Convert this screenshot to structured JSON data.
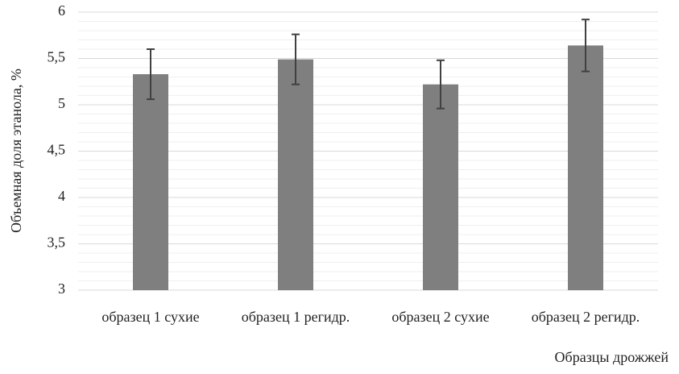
{
  "chart_data": {
    "type": "bar",
    "y_label": "Объемная доля этанола, %",
    "x_label": "Образцы дрожжей",
    "categories": [
      "образец 1 сухие",
      "образец 1 регидр.",
      "образец 2 сухие",
      "образец 2 регидр."
    ],
    "values": [
      5.33,
      5.49,
      5.22,
      5.64
    ],
    "errors": [
      0.27,
      0.27,
      0.26,
      0.28
    ],
    "color": "#7f7f7f",
    "ylim": [
      3,
      6
    ],
    "yticks": [
      3,
      {
        "value": 3.5,
        "label": "3,5"
      },
      4,
      {
        "value": 4.5,
        "label": "4,5"
      },
      5,
      {
        "value": 5.5,
        "label": "5,5"
      },
      6
    ],
    "minor_yticks": [
      3.1,
      3.2,
      3.3,
      3.4,
      3.6,
      3.7,
      3.8,
      3.9,
      4.1,
      4.2,
      4.3,
      4.4,
      4.6,
      4.7,
      4.8,
      4.9,
      5.1,
      5.2,
      5.3,
      5.4,
      5.6,
      5.7,
      5.8,
      5.9
    ],
    "grid": true
  }
}
